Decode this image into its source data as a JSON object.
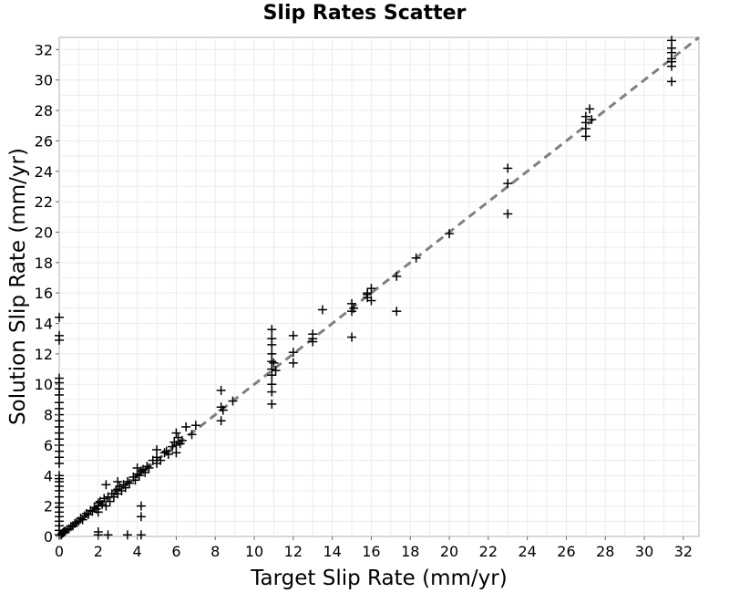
{
  "chart_data": {
    "type": "scatter",
    "title": "Slip Rates Scatter",
    "xlabel": "Target Slip Rate (mm/yr)",
    "ylabel": "Solution Slip Rate (mm/yr)",
    "xlim": [
      0,
      32.8
    ],
    "ylim": [
      0,
      32.8
    ],
    "x_ticks": [
      0,
      2,
      4,
      6,
      8,
      10,
      12,
      14,
      16,
      18,
      20,
      22,
      24,
      26,
      28,
      30,
      32
    ],
    "y_ticks": [
      0,
      2,
      4,
      6,
      8,
      10,
      12,
      14,
      16,
      18,
      20,
      22,
      24,
      26,
      28,
      30,
      32
    ],
    "grid": true,
    "marker": "+",
    "marker_color": "#000000",
    "reference_line": {
      "style": "dashed",
      "color": "#808080",
      "x": [
        0,
        32.8
      ],
      "y": [
        0,
        32.8
      ]
    },
    "points": [
      [
        0,
        14.4
      ],
      [
        0,
        13.2
      ],
      [
        0,
        12.9
      ],
      [
        0,
        10.4
      ],
      [
        0,
        10.1
      ],
      [
        0,
        9.7
      ],
      [
        0,
        9.3
      ],
      [
        0,
        8.8
      ],
      [
        0,
        8.4
      ],
      [
        0,
        8.0
      ],
      [
        0,
        7.6
      ],
      [
        0,
        7.2
      ],
      [
        0,
        6.8
      ],
      [
        0,
        6.4
      ],
      [
        0,
        6.0
      ],
      [
        0,
        5.6
      ],
      [
        0,
        5.2
      ],
      [
        0,
        4.8
      ],
      [
        0,
        4.0
      ],
      [
        0,
        3.8
      ],
      [
        0,
        3.6
      ],
      [
        0,
        3.3
      ],
      [
        0,
        3.0
      ],
      [
        0,
        2.6
      ],
      [
        0,
        2.2
      ],
      [
        0,
        1.9
      ],
      [
        0,
        1.6
      ],
      [
        0,
        1.3
      ],
      [
        0,
        1.0
      ],
      [
        0,
        0.7
      ],
      [
        0,
        0.4
      ],
      [
        0,
        0.1
      ],
      [
        0.1,
        0.1
      ],
      [
        0.15,
        0.2
      ],
      [
        0.2,
        0.25
      ],
      [
        0.25,
        0.3
      ],
      [
        0.3,
        0.35
      ],
      [
        0.4,
        0.45
      ],
      [
        0.5,
        0.5
      ],
      [
        0.6,
        0.65
      ],
      [
        0.7,
        0.7
      ],
      [
        0.8,
        0.85
      ],
      [
        0.9,
        0.9
      ],
      [
        1.0,
        1.0
      ],
      [
        1.1,
        1.2
      ],
      [
        1.2,
        1.1
      ],
      [
        1.3,
        1.35
      ],
      [
        1.4,
        1.5
      ],
      [
        1.5,
        1.45
      ],
      [
        1.6,
        1.7
      ],
      [
        1.7,
        1.65
      ],
      [
        1.8,
        1.9
      ],
      [
        1.9,
        1.8
      ],
      [
        2.0,
        2.0
      ],
      [
        2.0,
        2.2
      ],
      [
        2.0,
        1.6
      ],
      [
        2.0,
        0.3
      ],
      [
        2.0,
        0.1
      ],
      [
        2.1,
        2.3
      ],
      [
        2.2,
        2.1
      ],
      [
        2.3,
        2.5
      ],
      [
        2.4,
        3.4
      ],
      [
        2.4,
        2.0
      ],
      [
        2.5,
        2.6
      ],
      [
        2.5,
        0.1
      ],
      [
        2.6,
        2.3
      ],
      [
        2.7,
        2.8
      ],
      [
        2.8,
        2.6
      ],
      [
        2.9,
        3.0
      ],
      [
        3.0,
        3.1
      ],
      [
        3.0,
        3.6
      ],
      [
        3.0,
        2.8
      ],
      [
        3.1,
        3.3
      ],
      [
        3.2,
        3.0
      ],
      [
        3.3,
        3.4
      ],
      [
        3.4,
        3.2
      ],
      [
        3.5,
        3.6
      ],
      [
        3.5,
        0.1
      ],
      [
        3.6,
        3.5
      ],
      [
        3.8,
        3.9
      ],
      [
        3.9,
        3.7
      ],
      [
        4.0,
        4.1
      ],
      [
        4.0,
        4.5
      ],
      [
        4.1,
        4.0
      ],
      [
        4.2,
        4.3
      ],
      [
        4.2,
        2.0
      ],
      [
        4.2,
        1.3
      ],
      [
        4.2,
        0.1
      ],
      [
        4.3,
        4.4
      ],
      [
        4.4,
        4.2
      ],
      [
        4.5,
        4.6
      ],
      [
        4.6,
        4.5
      ],
      [
        4.8,
        5.0
      ],
      [
        5.0,
        5.2
      ],
      [
        5.0,
        4.8
      ],
      [
        5.0,
        5.7
      ],
      [
        5.2,
        5.0
      ],
      [
        5.4,
        5.5
      ],
      [
        5.5,
        5.6
      ],
      [
        5.6,
        5.4
      ],
      [
        5.8,
        5.9
      ],
      [
        5.9,
        6.2
      ],
      [
        6.0,
        6.0
      ],
      [
        6.0,
        6.8
      ],
      [
        6.0,
        5.5
      ],
      [
        6.1,
        6.5
      ],
      [
        6.2,
        6.1
      ],
      [
        6.3,
        6.3
      ],
      [
        6.5,
        7.2
      ],
      [
        6.8,
        6.7
      ],
      [
        7.0,
        7.3
      ],
      [
        8.3,
        8.5
      ],
      [
        8.3,
        9.6
      ],
      [
        8.3,
        7.6
      ],
      [
        8.4,
        8.3
      ],
      [
        8.9,
        8.9
      ],
      [
        10.9,
        13.6
      ],
      [
        10.9,
        13.0
      ],
      [
        10.9,
        12.6
      ],
      [
        10.9,
        12.0
      ],
      [
        10.9,
        11.5
      ],
      [
        10.9,
        11.0
      ],
      [
        10.9,
        10.6
      ],
      [
        10.9,
        10.0
      ],
      [
        10.9,
        9.5
      ],
      [
        10.9,
        8.7
      ],
      [
        11.0,
        11.4
      ],
      [
        11.1,
        10.9
      ],
      [
        12.0,
        13.2
      ],
      [
        12.0,
        11.4
      ],
      [
        12.0,
        12.1
      ],
      [
        13.0,
        13.3
      ],
      [
        13.0,
        12.8
      ],
      [
        13.0,
        13.0
      ],
      [
        13.5,
        14.9
      ],
      [
        15.0,
        15.3
      ],
      [
        15.0,
        14.8
      ],
      [
        15.0,
        13.1
      ],
      [
        15.1,
        15.0
      ],
      [
        15.8,
        15.7
      ],
      [
        15.8,
        16.0
      ],
      [
        15.8,
        15.9
      ],
      [
        16.0,
        16.3
      ],
      [
        16.0,
        15.5
      ],
      [
        17.3,
        14.8
      ],
      [
        17.3,
        17.1
      ],
      [
        18.3,
        18.3
      ],
      [
        20.0,
        19.9
      ],
      [
        23.0,
        24.2
      ],
      [
        23.0,
        23.2
      ],
      [
        23.0,
        21.2
      ],
      [
        27.0,
        27.6
      ],
      [
        27.0,
        27.2
      ],
      [
        27.0,
        26.8
      ],
      [
        27.0,
        26.3
      ],
      [
        27.2,
        28.1
      ],
      [
        27.3,
        27.4
      ],
      [
        31.4,
        32.6
      ],
      [
        31.4,
        32.1
      ],
      [
        31.4,
        31.8
      ],
      [
        31.4,
        31.4
      ],
      [
        31.4,
        31.2
      ],
      [
        31.4,
        30.9
      ],
      [
        31.4,
        29.9
      ]
    ]
  }
}
